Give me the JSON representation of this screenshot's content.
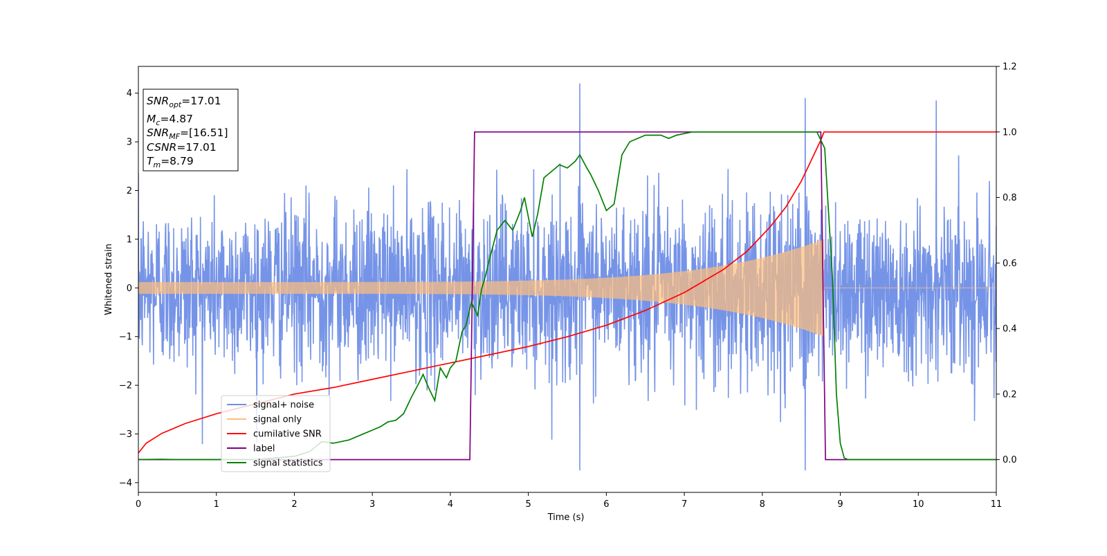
{
  "chart_data": {
    "type": "line",
    "xlabel": "Time (s)",
    "ylabel": "Whitened strain",
    "xlim": [
      0,
      11
    ],
    "ylim": [
      -4.2,
      4.55
    ],
    "y2lim": [
      -0.1,
      1.2
    ],
    "x_ticks": [
      "0",
      "1",
      "2",
      "3",
      "4",
      "5",
      "6",
      "7",
      "8",
      "9",
      "10",
      "11"
    ],
    "y_ticks": [
      "−4",
      "−3",
      "−2",
      "−1",
      "0",
      "1",
      "2",
      "3",
      "4"
    ],
    "y2_ticks": [
      "0.0",
      "0.2",
      "0.4",
      "0.6",
      "0.8",
      "1.0",
      "1.2"
    ],
    "grid": false,
    "legend_position": "lower-left",
    "infobox": {
      "snr_opt_label": "SNR",
      "snr_opt_sub": "opt",
      "snr_opt_value": "=17.01",
      "mc_label": "M",
      "mc_sub": "c",
      "mc_value": "=4.87",
      "snr_mf_label": "SNR",
      "snr_mf_sub": "MF",
      "snr_mf_value": "=[16.51]",
      "csnr_label": "CSNR",
      "csnr_value": "=17.01",
      "tm_label": "T",
      "tm_sub": "m",
      "tm_value": "=8.79"
    },
    "series": [
      {
        "name": "signal+ noise",
        "color": "#6f8ee6",
        "axis": "left",
        "description_only": true,
        "noise_std": 0.85,
        "noise_peaks": [
          {
            "x": 5.66,
            "y": 4.2
          },
          {
            "x": 8.55,
            "y": 3.9
          },
          {
            "x": 10.23,
            "y": 3.85
          },
          {
            "x": 5.66,
            "y": -3.75
          },
          {
            "x": 8.55,
            "y": -3.75
          }
        ]
      },
      {
        "name": "signal only",
        "color": "#ffbe7a",
        "axis": "left",
        "description_only": true,
        "envelope": {
          "start_amp": 0.12,
          "end_amp": 1.0,
          "merger_time": 8.79
        }
      },
      {
        "name": "cumilative SNR",
        "color": "#ff0000",
        "axis": "right",
        "x": [
          0,
          0.1,
          0.3,
          0.6,
          1,
          1.5,
          2,
          2.5,
          3,
          3.5,
          4,
          4.5,
          5,
          5.5,
          6,
          6.5,
          7,
          7.5,
          7.8,
          8.1,
          8.3,
          8.5,
          8.6,
          8.7,
          8.75,
          8.79,
          8.8,
          11
        ],
        "y": [
          0.02,
          0.05,
          0.08,
          0.11,
          0.14,
          0.17,
          0.2,
          0.22,
          0.245,
          0.27,
          0.295,
          0.32,
          0.345,
          0.375,
          0.41,
          0.455,
          0.51,
          0.58,
          0.635,
          0.71,
          0.77,
          0.85,
          0.9,
          0.95,
          0.975,
          1.0,
          1.0,
          1.0
        ]
      },
      {
        "name": "label",
        "color": "#800080",
        "axis": "right",
        "x": [
          0,
          4.25,
          4.31,
          8.75,
          8.81,
          11
        ],
        "y": [
          0.0,
          0.0,
          1.0,
          1.0,
          0.0,
          0.0
        ]
      },
      {
        "name": "signal statistics",
        "color": "#008000",
        "axis": "right",
        "x": [
          0,
          0.3,
          0.5,
          1,
          1.5,
          2,
          2.2,
          2.35,
          2.5,
          2.7,
          2.9,
          3.0,
          3.1,
          3.2,
          3.3,
          3.4,
          3.5,
          3.6,
          3.65,
          3.72,
          3.8,
          3.87,
          3.95,
          4.0,
          4.07,
          4.15,
          4.2,
          4.27,
          4.35,
          4.4,
          4.45,
          4.5,
          4.6,
          4.7,
          4.8,
          4.9,
          4.95,
          5.05,
          5.12,
          5.2,
          5.25,
          5.3,
          5.4,
          5.5,
          5.6,
          5.66,
          5.75,
          5.8,
          5.9,
          6.0,
          6.1,
          6.2,
          6.3,
          6.5,
          6.7,
          6.8,
          6.9,
          7.1,
          7.3,
          7.5,
          7.7,
          8.0,
          8.5,
          8.7,
          8.8,
          8.9,
          8.95,
          9.0,
          9.05,
          9.1,
          9.2,
          9.5,
          11
        ],
        "y": [
          0.0,
          0.001,
          0.0,
          0.0,
          0.0,
          0.01,
          0.025,
          0.055,
          0.05,
          0.06,
          0.08,
          0.09,
          0.1,
          0.115,
          0.12,
          0.14,
          0.19,
          0.235,
          0.26,
          0.22,
          0.18,
          0.28,
          0.25,
          0.28,
          0.3,
          0.39,
          0.41,
          0.48,
          0.44,
          0.52,
          0.56,
          0.61,
          0.7,
          0.73,
          0.7,
          0.76,
          0.8,
          0.68,
          0.75,
          0.86,
          0.87,
          0.88,
          0.9,
          0.89,
          0.91,
          0.93,
          0.89,
          0.87,
          0.82,
          0.76,
          0.78,
          0.93,
          0.97,
          0.99,
          0.99,
          0.98,
          0.99,
          1.0,
          1.0,
          1.0,
          1.0,
          1.0,
          1.0,
          1.0,
          0.95,
          0.55,
          0.2,
          0.05,
          0.005,
          0.0,
          0.0,
          0.0,
          0.0
        ]
      }
    ]
  }
}
